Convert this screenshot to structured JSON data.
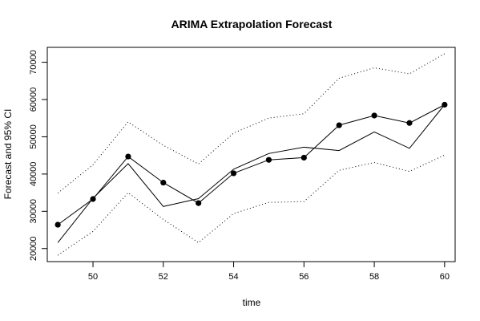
{
  "chart_data": {
    "type": "line",
    "title": "ARIMA Extrapolation Forecast",
    "xlabel": "time",
    "ylabel": "Forecast and 95% CI",
    "xlim": [
      48.7,
      60.3
    ],
    "ylim": [
      16500,
      74000
    ],
    "x_ticks": [
      50,
      52,
      54,
      56,
      58,
      60
    ],
    "y_ticks": [
      20000,
      30000,
      40000,
      50000,
      60000,
      70000
    ],
    "grid": false,
    "legend": "none",
    "x": [
      49,
      50,
      51,
      52,
      53,
      54,
      55,
      56,
      57,
      58,
      59,
      60
    ],
    "series": [
      {
        "role": "actual",
        "style": "solid-with-points",
        "color": "#000000",
        "values": [
          26400,
          33300,
          44700,
          37700,
          32200,
          40200,
          43800,
          44400,
          53100,
          55700,
          53700,
          58600
        ]
      },
      {
        "role": "forecast",
        "style": "solid",
        "color": "#000000",
        "values": [
          21600,
          33500,
          42800,
          31300,
          33400,
          41300,
          45500,
          47200,
          46300,
          51300,
          46900,
          58600
        ]
      },
      {
        "role": "upper-95",
        "style": "dotted",
        "color": "#000000",
        "values": [
          34900,
          42500,
          54000,
          47700,
          42700,
          51000,
          55000,
          56200,
          65700,
          68500,
          66900,
          72300
        ]
      },
      {
        "role": "lower-95",
        "style": "dotted",
        "color": "#000000",
        "values": [
          18200,
          24600,
          35000,
          27800,
          21600,
          29400,
          32400,
          32600,
          41000,
          43100,
          40700,
          45100
        ]
      }
    ]
  }
}
